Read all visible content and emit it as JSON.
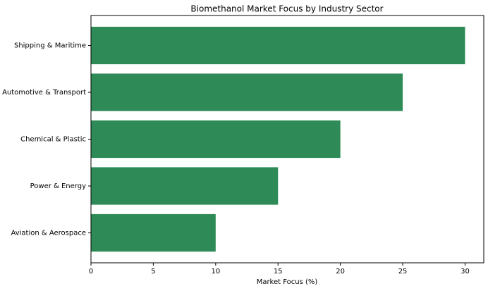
{
  "chart_data": {
    "type": "barh",
    "title": "Biomethanol Market Focus by Industry Sector",
    "xlabel": "Market Focus (%)",
    "categories": [
      "Shipping & Maritime",
      "Automotive & Transport",
      "Chemical & Plastic",
      "Power & Energy",
      "Aviation & Aerospace"
    ],
    "values": [
      30,
      25,
      20,
      15,
      10
    ],
    "color": "#2e8b57",
    "xlim": [
      0,
      31.5
    ],
    "xticks": [
      0,
      5,
      10,
      15,
      20,
      25,
      30
    ],
    "grid": false
  }
}
